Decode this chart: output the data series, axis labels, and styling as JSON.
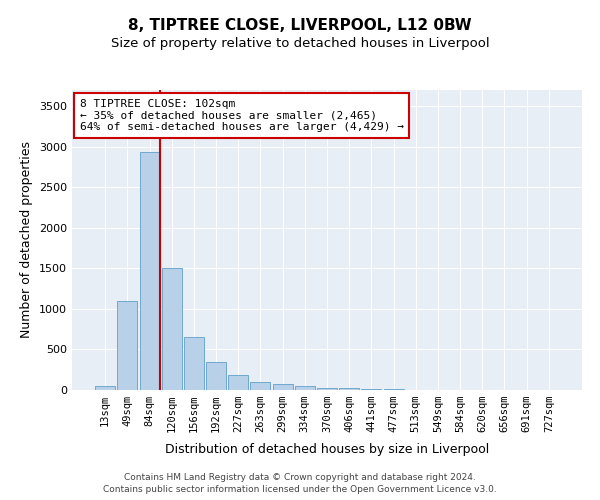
{
  "title_line1": "8, TIPTREE CLOSE, LIVERPOOL, L12 0BW",
  "title_line2": "Size of property relative to detached houses in Liverpool",
  "xlabel": "Distribution of detached houses by size in Liverpool",
  "ylabel": "Number of detached properties",
  "bar_color": "#b8d0e8",
  "bar_edge_color": "#6ea8d0",
  "background_color": "#e8eef5",
  "grid_color": "#ffffff",
  "categories": [
    "13sqm",
    "49sqm",
    "84sqm",
    "120sqm",
    "156sqm",
    "192sqm",
    "227sqm",
    "263sqm",
    "299sqm",
    "334sqm",
    "370sqm",
    "406sqm",
    "441sqm",
    "477sqm",
    "513sqm",
    "549sqm",
    "584sqm",
    "620sqm",
    "656sqm",
    "691sqm",
    "727sqm"
  ],
  "values": [
    55,
    1100,
    2940,
    1510,
    650,
    340,
    185,
    95,
    75,
    55,
    30,
    25,
    10,
    8,
    5,
    3,
    2,
    1,
    0,
    0,
    0
  ],
  "ylim": [
    0,
    3700
  ],
  "yticks": [
    0,
    500,
    1000,
    1500,
    2000,
    2500,
    3000,
    3500
  ],
  "vline_color": "#cc0000",
  "vline_x": 2.45,
  "annotation_text": "8 TIPTREE CLOSE: 102sqm\n← 35% of detached houses are smaller (2,465)\n64% of semi-detached houses are larger (4,429) →",
  "footnote_line1": "Contains HM Land Registry data © Crown copyright and database right 2024.",
  "footnote_line2": "Contains public sector information licensed under the Open Government Licence v3.0.",
  "title_fontsize": 11,
  "subtitle_fontsize": 9.5,
  "xlabel_fontsize": 9,
  "ylabel_fontsize": 9,
  "annotation_fontsize": 8,
  "footnote_fontsize": 6.5
}
